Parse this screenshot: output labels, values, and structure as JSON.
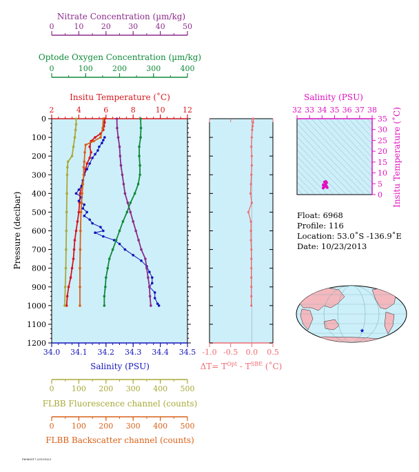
{
  "colors": {
    "nitrate": "#8b2a8b",
    "oxygen": "#0f8a3a",
    "temperature": "#d8141a",
    "salinity": "#1414b8",
    "fluorescence": "#a8a838",
    "backscatter": "#d86018",
    "delta_t": "#f06a72",
    "ts_axis": "#e010c0",
    "panel_bg": "#cdeff9"
  },
  "axes_text": {
    "nitrate_title": "Nitrate Concentration (µm/kg)",
    "oxygen_title": "Optode Oxygen Concentration (µm/kg)",
    "temperature_title": "Insitu Temperature (˚C)",
    "pressure_title": "Pressure (decibar)",
    "salinity_title": "Salinity (PSU)",
    "fluorescence_title": "FLBB Fluorescence channel (counts)",
    "backscatter_title": "FLBB Backscatter channel (counts)",
    "delta_t_title_main": "ΔT= T",
    "delta_t_sup1": "Opt",
    "delta_t_mid": " - T",
    "delta_t_sup2": "SBE",
    "delta_t_end": " (˚C)",
    "ts_salinity_title": "Salinity (PSU)",
    "ts_temperature_title": "Insitu Temperature (˚C)"
  },
  "info": {
    "float": "Float:  6968",
    "profile": "Profile:  116",
    "location": "Location:  53.0˚S  -136.9˚E",
    "date": "Date:  10/23/2013"
  },
  "footer_text": "P6968117.20131023",
  "chart_data": [
    {
      "type": "line",
      "title": "",
      "ylabel": "Pressure (decibar)",
      "ylim": [
        1200,
        0
      ],
      "y_ticks": [
        0,
        100,
        200,
        300,
        400,
        500,
        600,
        700,
        800,
        900,
        1000,
        1100,
        1200
      ],
      "axes": {
        "nitrate": {
          "label": "Nitrate Concentration (µm/kg)",
          "lim": [
            0,
            50
          ],
          "ticks": [
            0,
            10,
            20,
            30,
            40,
            50
          ]
        },
        "oxygen": {
          "label": "Optode Oxygen Concentration (µm/kg)",
          "lim": [
            0,
            400
          ],
          "ticks": [
            0,
            100,
            200,
            300,
            400
          ]
        },
        "temperature": {
          "label": "Insitu Temperature (˚C)",
          "lim": [
            2,
            12
          ],
          "ticks": [
            2,
            4,
            6,
            8,
            10,
            12
          ]
        },
        "salinity": {
          "label": "Salinity (PSU)",
          "lim": [
            34.0,
            34.5
          ],
          "ticks": [
            34.0,
            34.1,
            34.2,
            34.3,
            34.4,
            34.5
          ]
        },
        "fluorescence": {
          "label": "FLBB Fluorescence channel (counts)",
          "lim": [
            0,
            500
          ],
          "ticks": [
            0,
            100,
            200,
            300,
            400,
            500
          ]
        },
        "backscatter": {
          "label": "FLBB Backscatter channel (counts)",
          "lim": [
            0,
            500
          ],
          "ticks": [
            0,
            100,
            200,
            300,
            400,
            500
          ]
        }
      },
      "series": [
        {
          "key": "temperature",
          "points": [
            [
              5.9,
              0
            ],
            [
              5.9,
              20
            ],
            [
              5.85,
              40
            ],
            [
              5.8,
              60
            ],
            [
              5.6,
              80
            ],
            [
              5.2,
              100
            ],
            [
              4.9,
              120
            ],
            [
              4.8,
              150
            ],
            [
              4.9,
              180
            ],
            [
              4.8,
              210
            ],
            [
              4.6,
              240
            ],
            [
              4.5,
              270
            ],
            [
              4.4,
              300
            ],
            [
              4.3,
              330
            ],
            [
              4.2,
              360
            ],
            [
              4.1,
              400
            ],
            [
              4.05,
              450
            ],
            [
              4.0,
              500
            ],
            [
              3.9,
              550
            ],
            [
              3.8,
              600
            ],
            [
              3.7,
              650
            ],
            [
              3.65,
              700
            ],
            [
              3.6,
              750
            ],
            [
              3.5,
              800
            ],
            [
              3.4,
              850
            ],
            [
              3.25,
              900
            ],
            [
              3.15,
              950
            ],
            [
              3.1,
              1000
            ]
          ]
        },
        {
          "key": "salinity",
          "points": [
            [
              34.195,
              100
            ],
            [
              34.19,
              115
            ],
            [
              34.185,
              130
            ],
            [
              34.175,
              150
            ],
            [
              34.17,
              170
            ],
            [
              34.16,
              190
            ],
            [
              34.15,
              210
            ],
            [
              34.14,
              240
            ],
            [
              34.13,
              270
            ],
            [
              34.12,
              300
            ],
            [
              34.115,
              330
            ],
            [
              34.11,
              360
            ],
            [
              34.1,
              380
            ],
            [
              34.09,
              400
            ],
            [
              34.11,
              420
            ],
            [
              34.1,
              440
            ],
            [
              34.12,
              460
            ],
            [
              34.115,
              480
            ],
            [
              34.13,
              500
            ],
            [
              34.12,
              520
            ],
            [
              34.14,
              540
            ],
            [
              34.15,
              560
            ],
            [
              34.18,
              580
            ],
            [
              34.19,
              600
            ],
            [
              34.16,
              610
            ],
            [
              34.19,
              630
            ],
            [
              34.23,
              650
            ],
            [
              34.25,
              670
            ],
            [
              34.27,
              700
            ],
            [
              34.3,
              730
            ],
            [
              34.33,
              760
            ],
            [
              34.35,
              790
            ],
            [
              34.36,
              820
            ],
            [
              34.37,
              850
            ],
            [
              34.37,
              880
            ],
            [
              34.36,
              900
            ],
            [
              34.38,
              930
            ],
            [
              34.38,
              960
            ],
            [
              34.39,
              990
            ],
            [
              34.395,
              1000
            ]
          ]
        },
        {
          "key": "nitrate",
          "points": [
            [
              24,
              0
            ],
            [
              24.1,
              50
            ],
            [
              24.5,
              100
            ],
            [
              25,
              150
            ],
            [
              25.2,
              200
            ],
            [
              25.5,
              250
            ],
            [
              26,
              300
            ],
            [
              26.5,
              350
            ],
            [
              27,
              400
            ],
            [
              28,
              450
            ],
            [
              29,
              500
            ],
            [
              30,
              550
            ],
            [
              31,
              600
            ],
            [
              32,
              650
            ],
            [
              33,
              700
            ],
            [
              34.5,
              750
            ],
            [
              35,
              800
            ],
            [
              35.5,
              850
            ],
            [
              36,
              900
            ],
            [
              36.2,
              950
            ],
            [
              36.5,
              1000
            ]
          ]
        },
        {
          "key": "oxygen",
          "points": [
            [
              262,
              0
            ],
            [
              263,
              50
            ],
            [
              262,
              100
            ],
            [
              258,
              150
            ],
            [
              258,
              200
            ],
            [
              260,
              250
            ],
            [
              260,
              300
            ],
            [
              255,
              350
            ],
            [
              245,
              400
            ],
            [
              232,
              450
            ],
            [
              222,
              500
            ],
            [
              210,
              550
            ],
            [
              200,
              600
            ],
            [
              190,
              650
            ],
            [
              180,
              700
            ],
            [
              170,
              750
            ],
            [
              165,
              800
            ],
            [
              160,
              850
            ],
            [
              158,
              900
            ],
            [
              155,
              950
            ],
            [
              155,
              1000
            ]
          ]
        },
        {
          "key": "fluorescence",
          "points": [
            [
              90,
              0
            ],
            [
              90,
              30
            ],
            [
              88,
              60
            ],
            [
              85,
              100
            ],
            [
              80,
              150
            ],
            [
              75,
              200
            ],
            [
              60,
              230
            ],
            [
              58,
              260
            ],
            [
              57,
              300
            ],
            [
              56,
              400
            ],
            [
              55,
              500
            ],
            [
              54,
              600
            ],
            [
              53,
              700
            ],
            [
              52,
              800
            ],
            [
              50,
              900
            ],
            [
              48,
              1000
            ]
          ]
        },
        {
          "key": "backscatter",
          "points": [
            [
              190,
              0
            ],
            [
              188,
              50
            ],
            [
              180,
              100
            ],
            [
              155,
              120
            ],
            [
              125,
              140
            ],
            [
              122,
              180
            ],
            [
              120,
              230
            ],
            [
              118,
              260
            ],
            [
              118,
              300
            ],
            [
              115,
              350
            ],
            [
              112,
              400
            ],
            [
              110,
              450
            ],
            [
              108,
              500
            ],
            [
              106,
              600
            ],
            [
              105,
              700
            ],
            [
              104,
              800
            ],
            [
              104,
              900
            ],
            [
              104,
              1000
            ]
          ]
        }
      ]
    },
    {
      "type": "line",
      "title": "",
      "xlabel": "ΔT= TOpt - TSBE (˚C)",
      "xlim": [
        -1.0,
        0.5
      ],
      "x_ticks": [
        -1.0,
        -0.5,
        0.0,
        0.5
      ],
      "ylim": [
        1200,
        0
      ],
      "series": [
        {
          "name": "ΔT",
          "points": [
            [
              0.04,
              0
            ],
            [
              0.03,
              20
            ],
            [
              0.02,
              40
            ],
            [
              0.01,
              60
            ],
            [
              0.0,
              100
            ],
            [
              -0.01,
              150
            ],
            [
              0.0,
              200
            ],
            [
              0.0,
              250
            ],
            [
              -0.01,
              300
            ],
            [
              -0.02,
              350
            ],
            [
              -0.03,
              400
            ],
            [
              0.0,
              450
            ],
            [
              -0.08,
              500
            ],
            [
              -0.02,
              550
            ],
            [
              -0.02,
              600
            ],
            [
              -0.02,
              650
            ],
            [
              -0.01,
              700
            ],
            [
              -0.01,
              750
            ],
            [
              -0.01,
              800
            ],
            [
              -0.01,
              850
            ],
            [
              -0.01,
              900
            ],
            [
              -0.01,
              950
            ],
            [
              -0.01,
              1000
            ]
          ]
        }
      ]
    },
    {
      "type": "scatter",
      "title": "",
      "xlabel": "Salinity (PSU)",
      "ylabel": "Insitu Temperature (˚C)",
      "xlim": [
        32,
        38
      ],
      "ylim": [
        0,
        35
      ],
      "x_ticks": [
        32,
        33,
        34,
        35,
        36,
        37,
        38
      ],
      "y_ticks": [
        0,
        5,
        10,
        15,
        20,
        25,
        30,
        35
      ],
      "series": [
        {
          "name": "T-S",
          "points": [
            [
              34.1,
              3.1
            ],
            [
              34.15,
              3.6
            ],
            [
              34.2,
              4.0
            ],
            [
              34.25,
              4.5
            ],
            [
              34.3,
              5.0
            ],
            [
              34.35,
              5.5
            ],
            [
              34.3,
              6.0
            ],
            [
              34.2,
              5.8
            ],
            [
              34.1,
              4.4
            ],
            [
              34.4,
              3.3
            ],
            [
              34.35,
              3.8
            ]
          ]
        }
      ]
    }
  ],
  "map": {
    "float_marker": {
      "lat": -53.0,
      "lon": -136.9
    }
  }
}
